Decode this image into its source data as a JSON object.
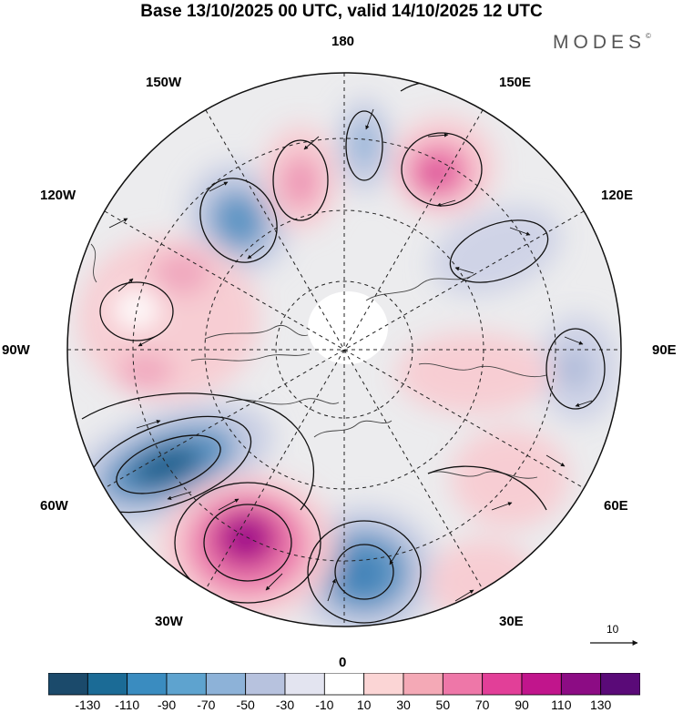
{
  "header": {
    "title": "Base 13/10/2025 00 UTC, valid 14/10/2025 12 UTC",
    "brand": "MODES",
    "brand_mark": "©"
  },
  "map": {
    "projection": "north polar stereographic",
    "longitude_labels": {
      "lon_180": "180",
      "lon_150e": "150E",
      "lon_120e": "120E",
      "lon_90e": "90E",
      "lon_60e": "60E",
      "lon_30e": "30E",
      "lon_0": "0",
      "lon_30w": "30W",
      "lon_60w": "60W",
      "lon_90w": "90W",
      "lon_120w": "120W",
      "lon_150w": "150W"
    },
    "reference_vector": "10",
    "colors": {
      "neg_strong": "#1d5f8c",
      "neg_mid": "#5e95c4",
      "neg_weak": "#c7cde3",
      "pos_weak": "#f7cdd3",
      "pos_mid": "#ee7fae",
      "pos_strong": "#8c128a"
    }
  },
  "colorbar": {
    "ticks": [
      "-130",
      "-110",
      "-90",
      "-70",
      "-50",
      "-30",
      "-10",
      "10",
      "30",
      "50",
      "70",
      "90",
      "110",
      "130"
    ],
    "colors": [
      "#1b4a6b",
      "#1b6b96",
      "#3a8cc0",
      "#5ea3cf",
      "#8db2d8",
      "#b7c2de",
      "#e3e4f0",
      "#ffffff",
      "#fbd5d5",
      "#f4a9b6",
      "#ee77a8",
      "#e23f98",
      "#c1158c",
      "#8c0c84",
      "#5a0a78"
    ]
  }
}
